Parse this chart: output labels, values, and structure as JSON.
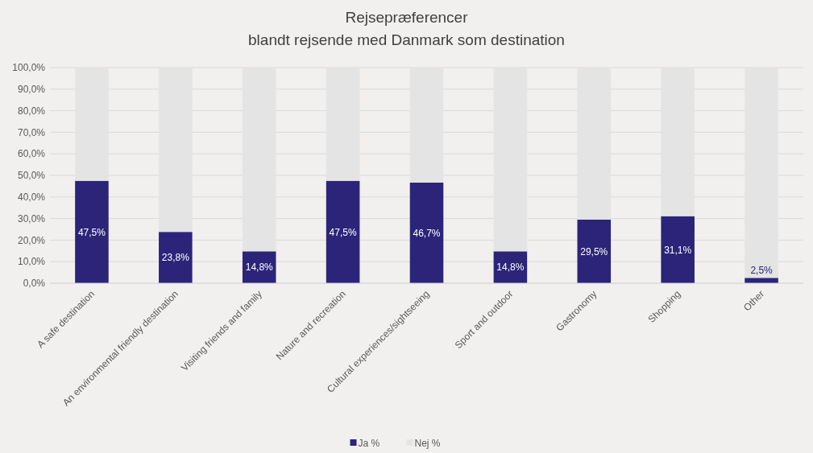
{
  "chart_data": {
    "type": "bar",
    "title": "Rejsepræferencer",
    "subtitle": "blandt rejsende med Danmark som destination",
    "stacked": true,
    "categories": [
      "A safe destination",
      "An environmental friendly destination",
      "Visiting friends and family",
      "Nature and recreation",
      "Cultural experiences/sightseeing",
      "Sport and outdoor",
      "Gastronomy",
      "Shopping",
      "Other"
    ],
    "series": [
      {
        "name": "Ja %",
        "color": "#2b2479",
        "values": [
          47.5,
          23.8,
          14.8,
          47.5,
          46.7,
          14.8,
          29.5,
          31.1,
          2.5
        ],
        "value_labels": [
          "47,5%",
          "23,8%",
          "14,8%",
          "47,5%",
          "46,7%",
          "14,8%",
          "29,5%",
          "31,1%",
          "2,5%"
        ]
      },
      {
        "name": "Nej %",
        "color": "#e4e4e4",
        "values": [
          52.5,
          76.2,
          85.2,
          52.5,
          53.3,
          85.2,
          70.5,
          68.9,
          97.5
        ]
      }
    ],
    "ylim": [
      0,
      100
    ],
    "yticks": [
      {
        "value": 0,
        "label": "0,0%"
      },
      {
        "value": 10,
        "label": "10,0%"
      },
      {
        "value": 20,
        "label": "20,0%"
      },
      {
        "value": 30,
        "label": "30,0%"
      },
      {
        "value": 40,
        "label": "40,0%"
      },
      {
        "value": 50,
        "label": "50,0%"
      },
      {
        "value": 60,
        "label": "60,0%"
      },
      {
        "value": 70,
        "label": "70,0%"
      },
      {
        "value": 80,
        "label": "80,0%"
      },
      {
        "value": 90,
        "label": "90,0%"
      },
      {
        "value": 100,
        "label": "100,0%"
      }
    ],
    "grid": "y",
    "legend": "bottom"
  }
}
